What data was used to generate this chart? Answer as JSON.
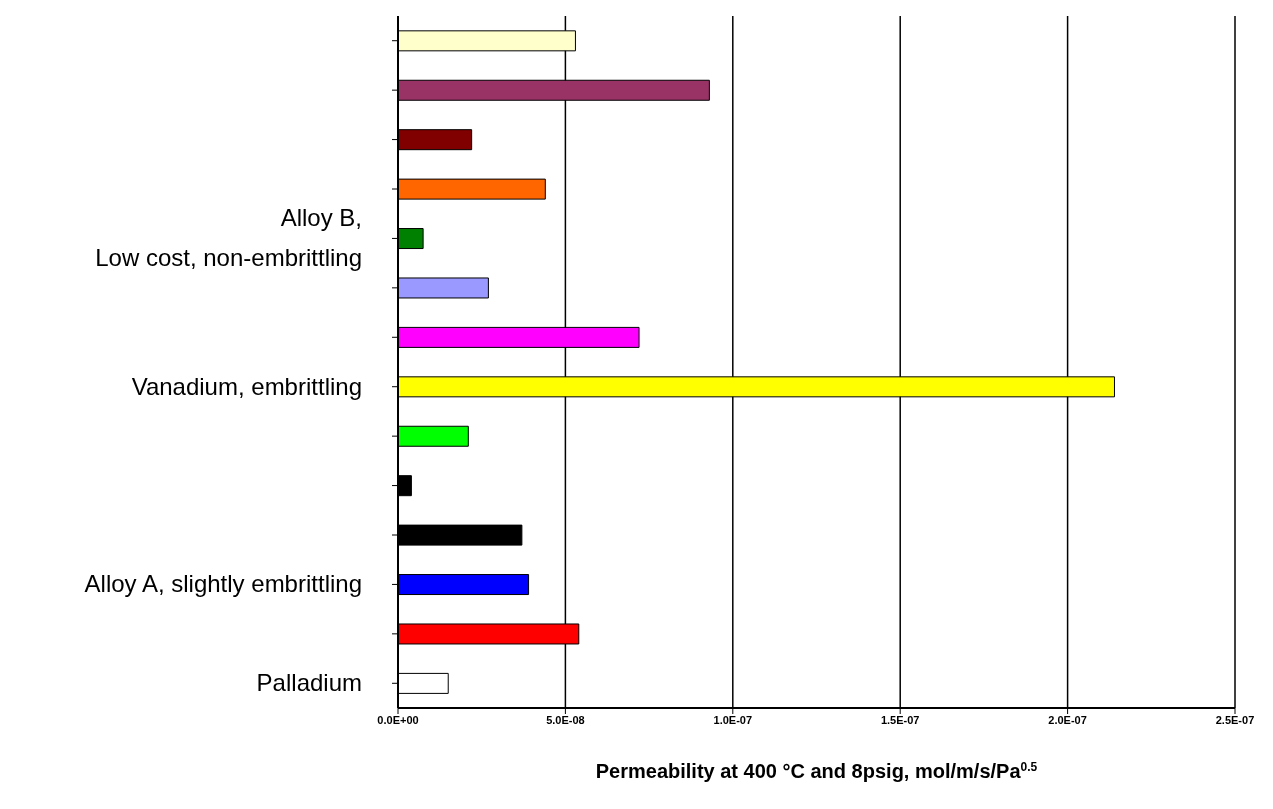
{
  "chart_data": {
    "type": "bar",
    "orientation": "horizontal",
    "xlabel": "Permeability at 400 °C and 8psig, mol/m/s/Pa$^{0.5}$",
    "categories": [
      null,
      null,
      null,
      null,
      "Alloy B,\nLow cost, non-embrittling",
      null,
      null,
      "Vanadium, embrittling",
      null,
      null,
      null,
      "Alloy A, slightly embrittling",
      null,
      "Palladium"
    ],
    "values": [
      5.3e-08,
      9.3e-08,
      2.2e-08,
      4.4e-08,
      7.5e-09,
      2.7e-08,
      7.2e-08,
      2.14e-07,
      2.1e-08,
      4e-09,
      3.7e-08,
      3.9e-08,
      5.4e-08,
      1.5e-08
    ],
    "colors": [
      "#ffffcc",
      "#993366",
      "#800000",
      "#ff6600",
      "#008000",
      "#9999ff",
      "#ff00ff",
      "#ffff00",
      "#00ff00",
      "#000000",
      "#000000",
      "#0000ff",
      "#ff0000",
      "#ffffff"
    ],
    "xlim": [
      0,
      2.5e-07
    ],
    "xticks": [
      {
        "value": 0,
        "label": "0.0E+00"
      },
      {
        "value": 5e-08,
        "label": "5.0E-08"
      },
      {
        "value": 1e-07,
        "label": "1.0E-07"
      },
      {
        "value": 1.5e-07,
        "label": "1.5E-07"
      },
      {
        "value": 2e-07,
        "label": "2.0E-07"
      },
      {
        "value": 2.5e-07,
        "label": "2.5E-07"
      }
    ],
    "grid": "x"
  }
}
